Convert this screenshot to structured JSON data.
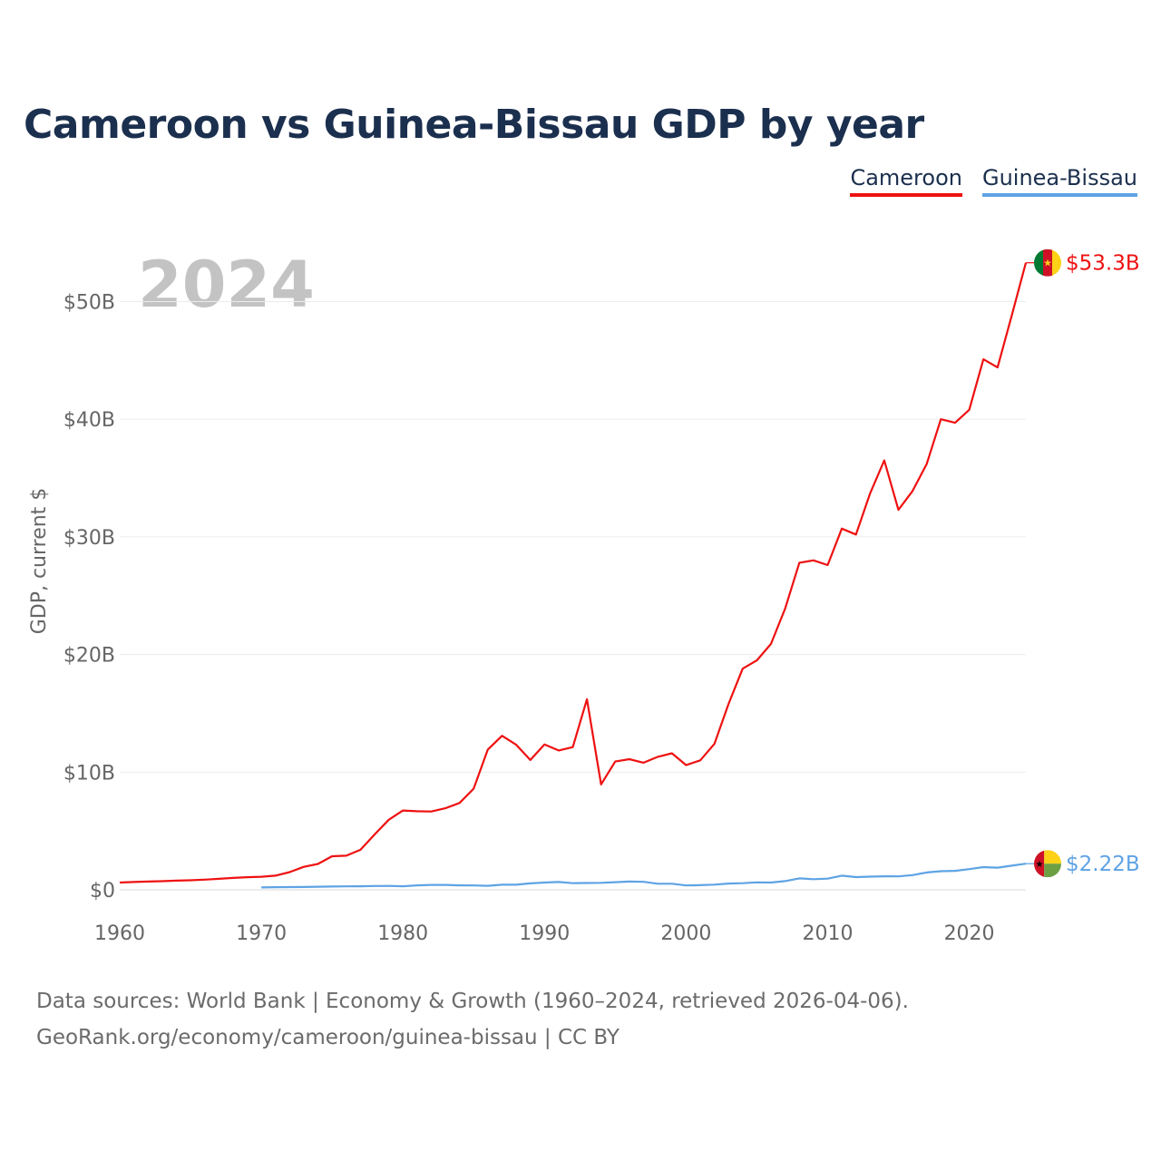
{
  "title": "Cameroon vs Guinea-Bissau GDP by year",
  "legend": [
    {
      "name": "Cameroon",
      "color": "#ee1111"
    },
    {
      "name": "Guinea-Bissau",
      "color": "#5ea3e4"
    }
  ],
  "chart_data": {
    "type": "line",
    "title": "Cameroon vs Guinea-Bissau GDP by year",
    "ylabel": "GDP, current $",
    "xlabel": "",
    "year_label": "2024",
    "xlim": [
      1960,
      2024
    ],
    "ylim": [
      0,
      55
    ],
    "y_unit": "billion current US$",
    "x_ticks": [
      1960,
      1970,
      1980,
      1990,
      2000,
      2010,
      2020
    ],
    "y_ticks": [
      0,
      10,
      20,
      30,
      40,
      50
    ],
    "y_tick_labels": [
      "$0",
      "$10B",
      "$20B",
      "$30B",
      "$40B",
      "$50B"
    ],
    "grid": true,
    "series": [
      {
        "name": "Cameroon",
        "color": "#ee1111",
        "end_label": "$53.3B",
        "end_flag": "cameroon-flag-icon",
        "x": [
          1960,
          1961,
          1962,
          1963,
          1964,
          1965,
          1966,
          1967,
          1968,
          1969,
          1970,
          1971,
          1972,
          1973,
          1974,
          1975,
          1976,
          1977,
          1978,
          1979,
          1980,
          1981,
          1982,
          1983,
          1984,
          1985,
          1986,
          1987,
          1988,
          1989,
          1990,
          1991,
          1992,
          1993,
          1994,
          1995,
          1996,
          1997,
          1998,
          1999,
          2000,
          2001,
          2002,
          2003,
          2004,
          2005,
          2006,
          2007,
          2008,
          2009,
          2010,
          2011,
          2012,
          2013,
          2014,
          2015,
          2016,
          2017,
          2018,
          2019,
          2020,
          2021,
          2022,
          2023,
          2024
        ],
        "values": [
          0.62,
          0.66,
          0.7,
          0.73,
          0.78,
          0.81,
          0.86,
          0.93,
          1.01,
          1.07,
          1.11,
          1.2,
          1.5,
          1.95,
          2.2,
          2.85,
          2.9,
          3.4,
          4.7,
          5.95,
          6.74,
          6.68,
          6.65,
          6.93,
          7.38,
          8.6,
          11.92,
          13.09,
          12.33,
          11.03,
          12.36,
          11.84,
          12.13,
          16.2,
          8.96,
          10.9,
          11.1,
          10.8,
          11.3,
          11.6,
          10.6,
          11.0,
          12.4,
          15.8,
          18.8,
          19.5,
          20.9,
          23.9,
          27.8,
          28.0,
          27.6,
          30.7,
          30.2,
          33.7,
          36.5,
          32.3,
          33.9,
          36.2,
          40.0,
          39.7,
          40.8,
          45.1,
          44.4,
          48.8,
          53.3
        ]
      },
      {
        "name": "Guinea-Bissau",
        "color": "#5ea3e4",
        "end_label": "$2.22B",
        "end_flag": "guinea-bissau-flag-icon",
        "x": [
          1970,
          1971,
          1972,
          1973,
          1974,
          1975,
          1976,
          1977,
          1978,
          1979,
          1980,
          1981,
          1982,
          1983,
          1984,
          1985,
          1986,
          1987,
          1988,
          1989,
          1990,
          1991,
          1992,
          1993,
          1994,
          1995,
          1996,
          1997,
          1998,
          1999,
          2000,
          2001,
          2002,
          2003,
          2004,
          2005,
          2006,
          2007,
          2008,
          2009,
          2010,
          2011,
          2012,
          2013,
          2014,
          2015,
          2016,
          2017,
          2018,
          2019,
          2020,
          2021,
          2022,
          2023,
          2024
        ],
        "values": [
          0.2,
          0.22,
          0.23,
          0.24,
          0.26,
          0.28,
          0.29,
          0.3,
          0.32,
          0.33,
          0.3,
          0.38,
          0.42,
          0.42,
          0.38,
          0.37,
          0.34,
          0.43,
          0.43,
          0.55,
          0.62,
          0.66,
          0.56,
          0.58,
          0.59,
          0.65,
          0.7,
          0.68,
          0.52,
          0.52,
          0.37,
          0.39,
          0.44,
          0.53,
          0.56,
          0.63,
          0.62,
          0.74,
          0.97,
          0.9,
          0.95,
          1.2,
          1.08,
          1.12,
          1.15,
          1.14,
          1.25,
          1.47,
          1.58,
          1.61,
          1.76,
          1.93,
          1.88,
          2.05,
          2.22
        ]
      }
    ]
  },
  "footer": {
    "line1": "Data sources: World Bank | Economy & Growth (1960–2024, retrieved 2026-04-06).",
    "line2": "GeoRank.org/economy/cameroon/guinea-bissau | CC BY"
  }
}
